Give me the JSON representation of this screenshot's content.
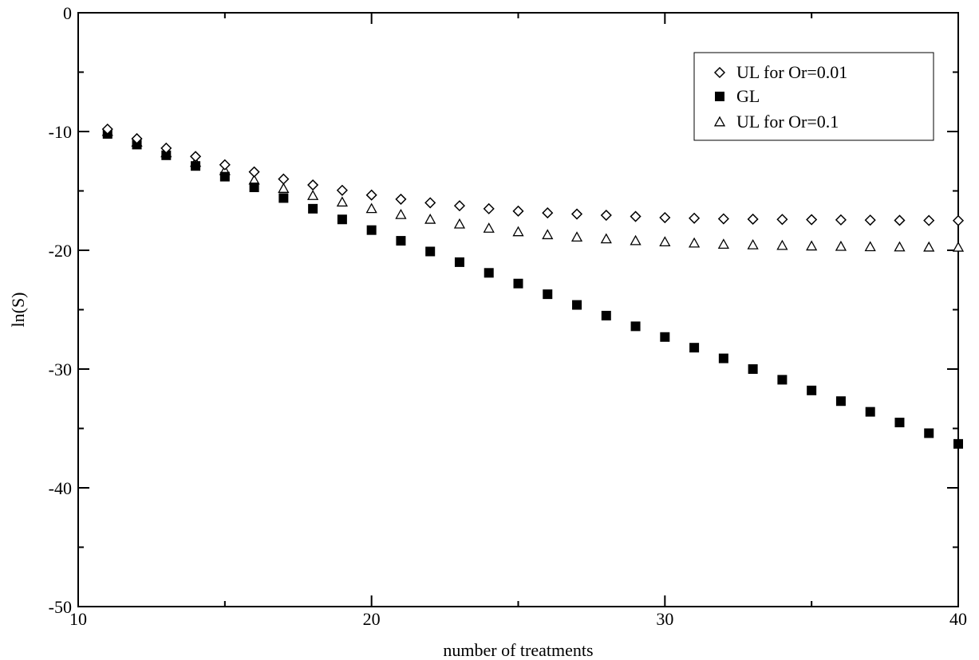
{
  "chart_data": {
    "type": "scatter",
    "xlabel": "number of treatments",
    "ylabel": "ln(S)",
    "xlim": [
      10,
      40
    ],
    "ylim": [
      -50,
      0
    ],
    "x_major_ticks": [
      10,
      20,
      30,
      40
    ],
    "y_major_ticks": [
      0,
      -10,
      -20,
      -30,
      -40,
      -50
    ],
    "x_tick_labels": [
      "10",
      "20",
      "30",
      "40"
    ],
    "y_tick_labels": [
      "0",
      "-10",
      "-20",
      "-30",
      "-40",
      "-50"
    ],
    "x_minor_step": 5,
    "y_minor_step": 5,
    "grid": false,
    "legend_position": "top-right",
    "x": [
      11,
      12,
      13,
      14,
      15,
      16,
      17,
      18,
      19,
      20,
      21,
      22,
      23,
      24,
      25,
      26,
      27,
      28,
      29,
      30,
      31,
      32,
      33,
      34,
      35,
      36,
      37,
      38,
      39,
      40
    ],
    "series": [
      {
        "name": "UL for Or=0.01",
        "marker": "diamond-open",
        "values": [
          -9.8,
          -10.6,
          -11.4,
          -12.1,
          -12.8,
          -13.4,
          -14.0,
          -14.5,
          -14.95,
          -15.35,
          -15.7,
          -16.0,
          -16.25,
          -16.5,
          -16.7,
          -16.85,
          -16.95,
          -17.05,
          -17.15,
          -17.25,
          -17.3,
          -17.35,
          -17.38,
          -17.4,
          -17.42,
          -17.44,
          -17.46,
          -17.48,
          -17.49,
          -17.5
        ]
      },
      {
        "name": "GL",
        "marker": "square-filled",
        "values": [
          -10.2,
          -11.1,
          -12.0,
          -12.9,
          -13.8,
          -14.7,
          -15.6,
          -16.5,
          -17.4,
          -18.3,
          -19.2,
          -20.1,
          -21.0,
          -21.9,
          -22.8,
          -23.7,
          -24.6,
          -25.5,
          -26.4,
          -27.3,
          -28.2,
          -29.1,
          -30.0,
          -30.9,
          -31.8,
          -32.7,
          -33.6,
          -34.5,
          -35.4,
          -36.3
        ]
      },
      {
        "name": "UL for Or=0.1",
        "marker": "triangle-open",
        "values": [
          -10.0,
          -10.9,
          -11.8,
          -12.6,
          -13.3,
          -14.1,
          -14.8,
          -15.4,
          -15.95,
          -16.5,
          -17.0,
          -17.4,
          -17.8,
          -18.15,
          -18.45,
          -18.7,
          -18.9,
          -19.05,
          -19.2,
          -19.3,
          -19.4,
          -19.5,
          -19.55,
          -19.6,
          -19.65,
          -19.68,
          -19.71,
          -19.73,
          -19.74,
          -19.75
        ]
      }
    ]
  }
}
